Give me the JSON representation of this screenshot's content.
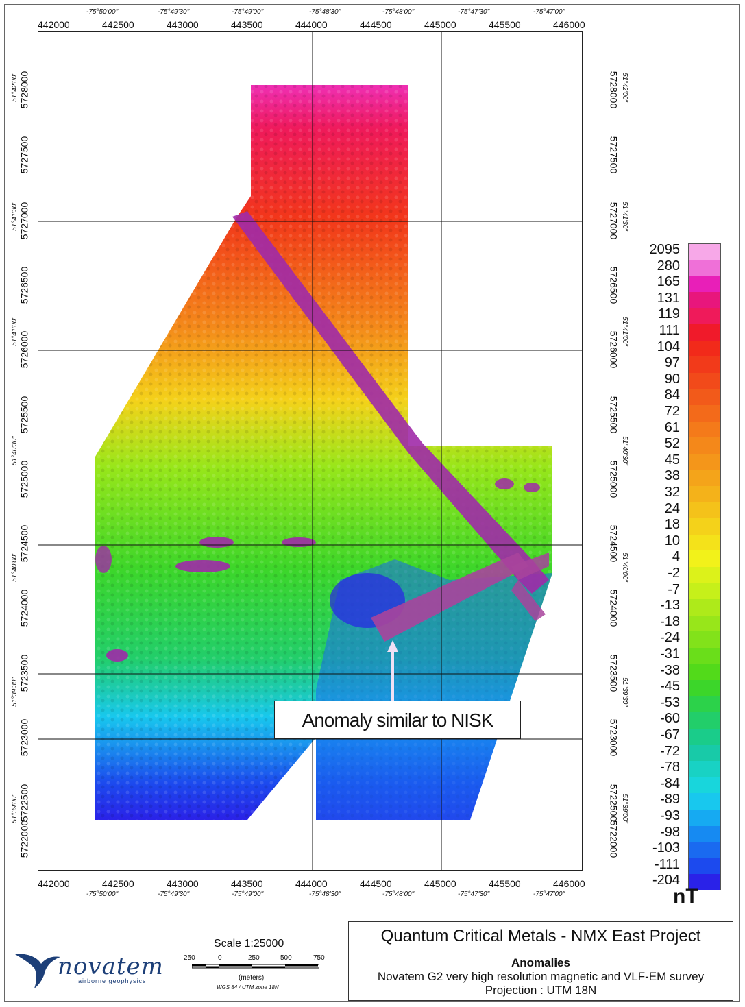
{
  "map": {
    "colorbar_values": [
      "2095",
      "280",
      "165",
      "131",
      "119",
      "111",
      "104",
      "97",
      "90",
      "84",
      "72",
      "61",
      "52",
      "45",
      "38",
      "32",
      "24",
      "18",
      "10",
      "4",
      "-2",
      "-7",
      "-13",
      "-18",
      "-24",
      "-31",
      "-38",
      "-45",
      "-53",
      "-60",
      "-67",
      "-72",
      "-78",
      "-84",
      "-89",
      "-93",
      "-98",
      "-103",
      "-111",
      "-204"
    ],
    "colorbar_colors": [
      "#f7a8e8",
      "#ef70d8",
      "#e81fb8",
      "#e8167c",
      "#ef1a5a",
      "#f01a2a",
      "#f22a1a",
      "#f23a1a",
      "#f24a1a",
      "#f25a1a",
      "#f36a1a",
      "#f47a1a",
      "#f4881a",
      "#f4961a",
      "#f4a41a",
      "#f4b21a",
      "#f4c21a",
      "#f4d21a",
      "#f4e21a",
      "#f2f21a",
      "#dcf21a",
      "#c6f01a",
      "#aeea1a",
      "#98e61a",
      "#82e21a",
      "#6ade1a",
      "#52da1a",
      "#3cd62a",
      "#2cd24a",
      "#22ce6a",
      "#1acc8a",
      "#18caa8",
      "#18d2c4",
      "#18d6dc",
      "#18c8ee",
      "#16aaf2",
      "#168af2",
      "#1a6af0",
      "#1c4aee",
      "#2a22e8"
    ],
    "unit": "nT",
    "callout": "Anomaly similar to NISK",
    "top_easting_labels": [
      "442000",
      "442500",
      "443000",
      "443500",
      "444000",
      "444500",
      "445000",
      "445500",
      "446000"
    ],
    "top_longitude_labels": [
      "-75°50'00\"",
      "-75°49'30\"",
      "-75°49'00\"",
      "-75°48'30\"",
      "-75°48'00\"",
      "-75°47'30\"",
      "-75°47'00\""
    ],
    "bottom_easting_labels": [
      "442000",
      "442500",
      "443000",
      "443500",
      "444000",
      "444500",
      "445000",
      "445500",
      "446000"
    ],
    "bottom_longitude_labels": [
      "-75°50'00\"",
      "-75°49'30\"",
      "-75°49'00\"",
      "-75°48'30\"",
      "-75°48'00\"",
      "-75°47'30\"",
      "-75°47'00\""
    ],
    "left_northing_labels": [
      "5728000",
      "5727500",
      "5727000",
      "5726500",
      "5726000",
      "5725500",
      "5725000",
      "5724500",
      "5724000",
      "5723500",
      "5723000",
      "5722500",
      "5722000"
    ],
    "left_latitude_labels": [
      "51°42'00\"",
      "51°41'30\"",
      "51°41'00\"",
      "51°40'30\"",
      "51°40'00\"",
      "51°39'30\"",
      "51°39'00\""
    ],
    "right_northing_labels": [
      "5728000",
      "5727500",
      "5727000",
      "5726500",
      "5726000",
      "5725500",
      "5725000",
      "5724500",
      "5724000",
      "5723500",
      "5723000",
      "5722500",
      "5722000"
    ],
    "right_latitude_labels": [
      "51°42'00\"",
      "51°41'30\"",
      "51°41'00\"",
      "51°40'30\"",
      "51°40'00\"",
      "51°39'30\"",
      "51°39'00\""
    ]
  },
  "title_block": {
    "project": "Quantum Critical Metals - NMX East Project",
    "subtitle": "Anomalies",
    "survey": "Novatem G2 very high resolution magnetic and VLF-EM survey",
    "projection": "Projection : UTM 18N"
  },
  "scale": {
    "title": "Scale 1:25000",
    "ticks": [
      "250",
      "0",
      "250",
      "500",
      "750"
    ],
    "unit": "(meters)",
    "projection": "WGS 84 / UTM zone 18N"
  },
  "logo": {
    "name": "novatem",
    "tagline": "airborne geophysics",
    "color": "#1d3f78"
  }
}
